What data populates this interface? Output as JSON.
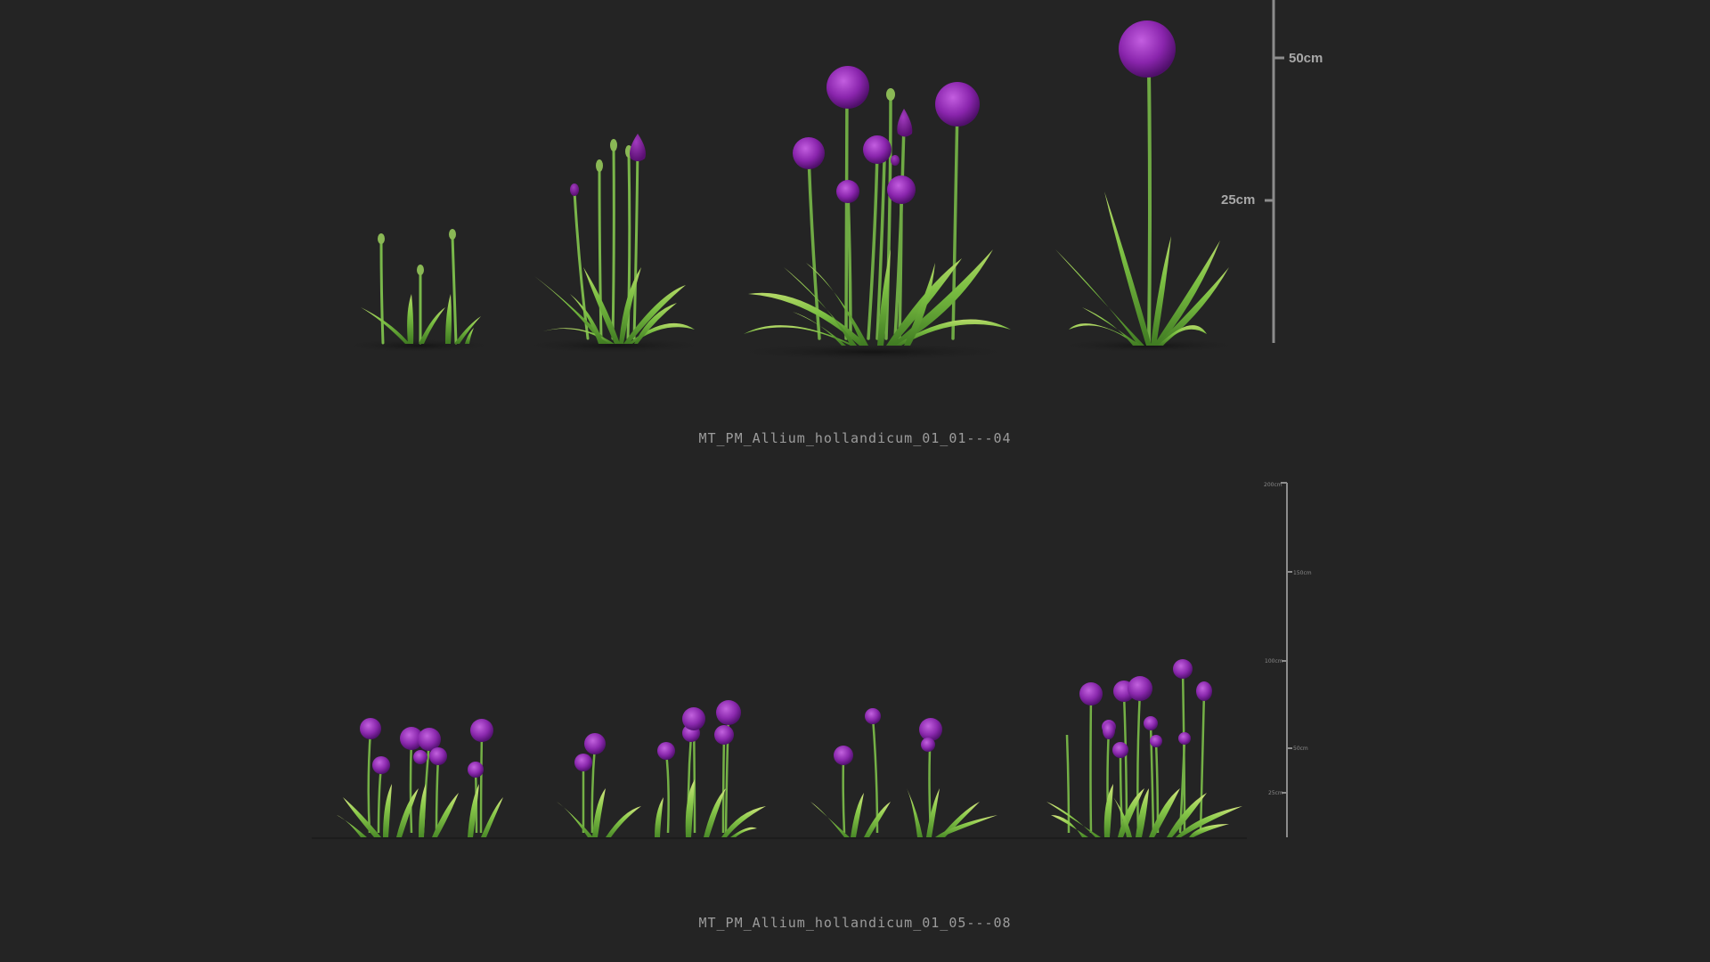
{
  "top": {
    "caption": "MT_PM_Allium_hollandicum_01_01---04",
    "scale": {
      "ticks": [
        {
          "label": "50cm"
        },
        {
          "label": "25cm"
        }
      ]
    },
    "plants": [
      {
        "name": "plant-1",
        "stage": "buds"
      },
      {
        "name": "plant-2",
        "stage": "opening-bud"
      },
      {
        "name": "plant-3",
        "stage": "cluster-bloom"
      },
      {
        "name": "plant-4",
        "stage": "single-bloom"
      }
    ]
  },
  "bottom": {
    "caption": "MT_PM_Allium_hollandicum_01_05---08",
    "scale": {
      "ticks": [
        {
          "label": "200cm"
        },
        {
          "label": "150cm"
        },
        {
          "label": "100cm"
        },
        {
          "label": "50cm"
        },
        {
          "label": "25cm"
        }
      ]
    },
    "plants": [
      {
        "name": "plant-5"
      },
      {
        "name": "plant-6"
      },
      {
        "name": "plant-7"
      },
      {
        "name": "plant-8"
      }
    ]
  },
  "colors": {
    "background": "#242424",
    "flower": "#8e2bb0",
    "leaf": "#6fae3a",
    "scale": "#8c8c8c"
  }
}
